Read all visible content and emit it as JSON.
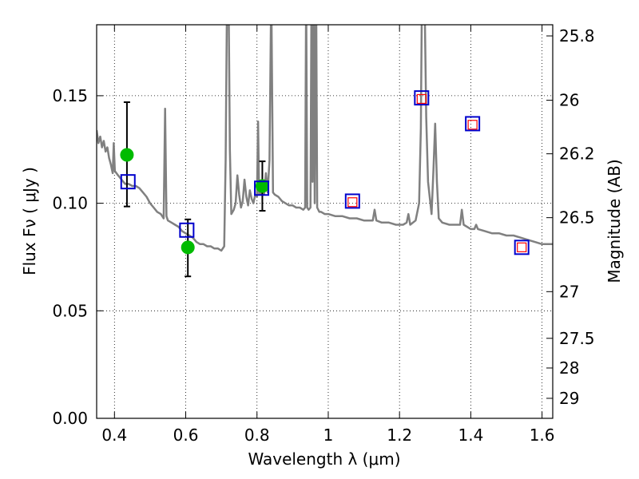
{
  "chart_data": {
    "type": "scatter",
    "title": "",
    "xlabel": "Wavelength  λ (μm)",
    "ylabel": "Flux  Fν  ( μJy )",
    "ylabel_right": "Magnitude (AB)",
    "xlim": [
      0.35,
      1.63
    ],
    "ylim": [
      0.0,
      0.183
    ],
    "grid": true,
    "grid_style": "dotted",
    "x_ticks": [
      0.4,
      0.6,
      0.8,
      1.0,
      1.2,
      1.4,
      1.6
    ],
    "x_tick_labels": [
      "0.4",
      "0.6",
      "0.8",
      "1",
      "1.2",
      "1.4",
      "1.6"
    ],
    "y_ticks": [
      0.0,
      0.05,
      0.1,
      0.15
    ],
    "y_tick_labels": [
      "0.00",
      "0.05",
      "0.10",
      "0.15"
    ],
    "right_axis_ticks": [
      {
        "label": "25.8",
        "flux": 0.1778
      },
      {
        "label": "26",
        "flux": 0.1479
      },
      {
        "label": "26.2",
        "flux": 0.123
      },
      {
        "label": "26.5",
        "flux": 0.0933
      },
      {
        "label": "27",
        "flux": 0.0589
      },
      {
        "label": "27.5",
        "flux": 0.0372
      },
      {
        "label": "28",
        "flux": 0.0234
      },
      {
        "label": "29",
        "flux": 0.0093
      }
    ],
    "series": [
      {
        "kind": "model-spectrum",
        "color": "#808080",
        "points": [
          [
            0.35,
            0.134
          ],
          [
            0.355,
            0.128
          ],
          [
            0.36,
            0.131
          ],
          [
            0.365,
            0.126
          ],
          [
            0.37,
            0.129
          ],
          [
            0.375,
            0.124
          ],
          [
            0.38,
            0.126
          ],
          [
            0.385,
            0.121
          ],
          [
            0.39,
            0.118
          ],
          [
            0.395,
            0.114
          ],
          [
            0.398,
            0.128
          ],
          [
            0.401,
            0.115
          ],
          [
            0.41,
            0.113
          ],
          [
            0.42,
            0.111
          ],
          [
            0.43,
            0.109
          ],
          [
            0.44,
            0.109
          ],
          [
            0.45,
            0.108
          ],
          [
            0.46,
            0.108
          ],
          [
            0.47,
            0.107
          ],
          [
            0.48,
            0.105
          ],
          [
            0.49,
            0.103
          ],
          [
            0.5,
            0.1
          ],
          [
            0.51,
            0.098
          ],
          [
            0.52,
            0.096
          ],
          [
            0.53,
            0.095
          ],
          [
            0.538,
            0.093
          ],
          [
            0.542,
            0.144
          ],
          [
            0.546,
            0.094
          ],
          [
            0.55,
            0.092
          ],
          [
            0.56,
            0.091
          ],
          [
            0.57,
            0.09
          ],
          [
            0.58,
            0.089
          ],
          [
            0.59,
            0.087
          ],
          [
            0.6,
            0.086
          ],
          [
            0.61,
            0.085
          ],
          [
            0.62,
            0.084
          ],
          [
            0.63,
            0.082
          ],
          [
            0.64,
            0.081
          ],
          [
            0.65,
            0.081
          ],
          [
            0.66,
            0.08
          ],
          [
            0.67,
            0.08
          ],
          [
            0.68,
            0.079
          ],
          [
            0.69,
            0.079
          ],
          [
            0.7,
            0.078
          ],
          [
            0.708,
            0.08
          ],
          [
            0.712,
            0.12
          ],
          [
            0.716,
            0.2
          ],
          [
            0.72,
            0.2
          ],
          [
            0.724,
            0.125
          ],
          [
            0.728,
            0.095
          ],
          [
            0.735,
            0.097
          ],
          [
            0.74,
            0.1
          ],
          [
            0.745,
            0.113
          ],
          [
            0.75,
            0.104
          ],
          [
            0.755,
            0.098
          ],
          [
            0.76,
            0.101
          ],
          [
            0.765,
            0.111
          ],
          [
            0.77,
            0.103
          ],
          [
            0.775,
            0.099
          ],
          [
            0.78,
            0.106
          ],
          [
            0.785,
            0.102
          ],
          [
            0.79,
            0.1
          ],
          [
            0.795,
            0.104
          ],
          [
            0.8,
            0.103
          ],
          [
            0.803,
            0.138
          ],
          [
            0.806,
            0.104
          ],
          [
            0.81,
            0.104
          ],
          [
            0.815,
            0.11
          ],
          [
            0.82,
            0.104
          ],
          [
            0.825,
            0.114
          ],
          [
            0.83,
            0.105
          ],
          [
            0.835,
            0.12
          ],
          [
            0.84,
            0.2
          ],
          [
            0.845,
            0.105
          ],
          [
            0.85,
            0.104
          ],
          [
            0.86,
            0.103
          ],
          [
            0.87,
            0.101
          ],
          [
            0.88,
            0.1
          ],
          [
            0.89,
            0.099
          ],
          [
            0.9,
            0.099
          ],
          [
            0.91,
            0.098
          ],
          [
            0.92,
            0.098
          ],
          [
            0.93,
            0.097
          ],
          [
            0.935,
            0.098
          ],
          [
            0.938,
            0.2
          ],
          [
            0.941,
            0.098
          ],
          [
            0.945,
            0.097
          ],
          [
            0.95,
            0.098
          ],
          [
            0.953,
            0.2
          ],
          [
            0.956,
            0.11
          ],
          [
            0.959,
            0.2
          ],
          [
            0.962,
            0.1
          ],
          [
            0.966,
            0.2
          ],
          [
            0.969,
            0.098
          ],
          [
            0.975,
            0.096
          ],
          [
            0.98,
            0.096
          ],
          [
            0.99,
            0.095
          ],
          [
            1.0,
            0.095
          ],
          [
            1.02,
            0.094
          ],
          [
            1.04,
            0.094
          ],
          [
            1.06,
            0.093
          ],
          [
            1.08,
            0.093
          ],
          [
            1.1,
            0.092
          ],
          [
            1.12,
            0.092
          ],
          [
            1.125,
            0.092
          ],
          [
            1.13,
            0.097
          ],
          [
            1.135,
            0.092
          ],
          [
            1.15,
            0.091
          ],
          [
            1.17,
            0.091
          ],
          [
            1.19,
            0.09
          ],
          [
            1.21,
            0.09
          ],
          [
            1.22,
            0.091
          ],
          [
            1.225,
            0.095
          ],
          [
            1.23,
            0.09
          ],
          [
            1.245,
            0.092
          ],
          [
            1.255,
            0.1
          ],
          [
            1.26,
            0.135
          ],
          [
            1.263,
            0.2
          ],
          [
            1.27,
            0.2
          ],
          [
            1.275,
            0.14
          ],
          [
            1.28,
            0.11
          ],
          [
            1.29,
            0.095
          ],
          [
            1.295,
            0.115
          ],
          [
            1.3,
            0.137
          ],
          [
            1.305,
            0.11
          ],
          [
            1.31,
            0.093
          ],
          [
            1.32,
            0.091
          ],
          [
            1.34,
            0.09
          ],
          [
            1.36,
            0.09
          ],
          [
            1.37,
            0.09
          ],
          [
            1.375,
            0.097
          ],
          [
            1.38,
            0.09
          ],
          [
            1.4,
            0.088
          ],
          [
            1.41,
            0.088
          ],
          [
            1.415,
            0.09
          ],
          [
            1.42,
            0.088
          ],
          [
            1.44,
            0.087
          ],
          [
            1.46,
            0.086
          ],
          [
            1.48,
            0.086
          ],
          [
            1.5,
            0.085
          ],
          [
            1.52,
            0.085
          ],
          [
            1.54,
            0.084
          ],
          [
            1.56,
            0.083
          ],
          [
            1.58,
            0.082
          ],
          [
            1.6,
            0.081
          ],
          [
            1.63,
            0.081
          ]
        ]
      },
      {
        "kind": "observed",
        "color": "#00bb00",
        "points": [
          {
            "x": 0.435,
            "y": 0.1225,
            "err_low": 0.0985,
            "err_high": 0.147
          },
          {
            "x": 0.606,
            "y": 0.0795,
            "err_low": 0.066,
            "err_high": 0.0925
          },
          {
            "x": 0.815,
            "y": 0.108,
            "err_low": 0.0965,
            "err_high": 0.1195
          }
        ]
      },
      {
        "kind": "model-photometry",
        "color": "#0000cc",
        "points": [
          {
            "x": 0.438,
            "y": 0.11
          },
          {
            "x": 0.603,
            "y": 0.0875
          },
          {
            "x": 0.813,
            "y": 0.107
          },
          {
            "x": 1.068,
            "y": 0.101
          },
          {
            "x": 1.262,
            "y": 0.149
          },
          {
            "x": 1.405,
            "y": 0.137
          },
          {
            "x": 1.543,
            "y": 0.0795
          }
        ]
      },
      {
        "kind": "upper-limit",
        "color": "#ff0000",
        "points": [
          {
            "x": 1.068,
            "y": 0.1005
          },
          {
            "x": 1.262,
            "y": 0.1485
          },
          {
            "x": 1.405,
            "y": 0.1365
          },
          {
            "x": 1.543,
            "y": 0.0795
          }
        ]
      }
    ]
  }
}
